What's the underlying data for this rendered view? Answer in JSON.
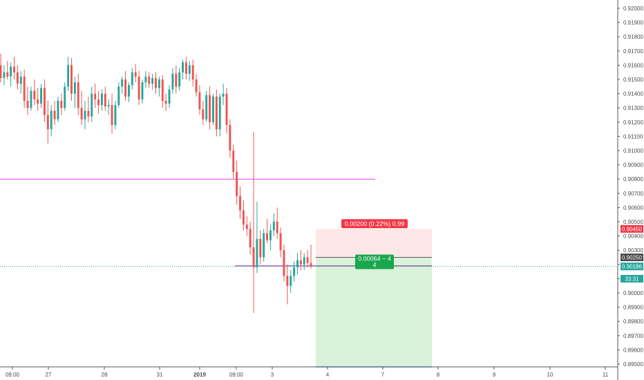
{
  "chart_data": {
    "type": "candlestick",
    "title": "",
    "xlabel": "",
    "ylabel": "",
    "ylim": [
      0.8946,
      0.9208
    ],
    "y_ticks": [
      "0.92000",
      "0.91900",
      "0.91800",
      "0.91700",
      "0.91600",
      "0.91500",
      "0.91400",
      "0.91300",
      "0.91200",
      "0.91100",
      "0.91000",
      "0.90900",
      "0.90800",
      "0.90700",
      "0.90600",
      "0.90500",
      "0.90400",
      "0.90300",
      "0.90200",
      "0.90100",
      "0.90000",
      "0.89900",
      "0.89800",
      "0.89700",
      "0.89600",
      "0.89500"
    ],
    "y_tick_values": [
      0.92,
      0.919,
      0.918,
      0.917,
      0.916,
      0.915,
      0.914,
      0.913,
      0.912,
      0.911,
      0.91,
      0.909,
      0.908,
      0.907,
      0.906,
      0.905,
      0.904,
      0.903,
      0.902,
      0.901,
      0.9,
      0.899,
      0.898,
      0.897,
      0.896,
      0.895
    ],
    "x_ticks": [
      {
        "label": "09:00",
        "bold": false
      },
      {
        "label": "27",
        "bold": false
      },
      {
        "label": "28",
        "bold": false
      },
      {
        "label": "31",
        "bold": false
      },
      {
        "label": "2019",
        "bold": true
      },
      {
        "label": "09:00",
        "bold": false
      },
      {
        "label": "3",
        "bold": false
      },
      {
        "label": "4",
        "bold": false
      },
      {
        "label": "7",
        "bold": false
      },
      {
        "label": "8",
        "bold": false
      },
      {
        "label": "9",
        "bold": false
      },
      {
        "label": "10",
        "bold": false
      },
      {
        "label": "11",
        "bold": false
      }
    ],
    "candles": [
      {
        "o": 0.916,
        "h": 0.9168,
        "l": 0.9148,
        "c": 0.9151
      },
      {
        "o": 0.9151,
        "h": 0.916,
        "l": 0.9146,
        "c": 0.9155
      },
      {
        "o": 0.9155,
        "h": 0.9163,
        "l": 0.915,
        "c": 0.9152
      },
      {
        "o": 0.9152,
        "h": 0.9162,
        "l": 0.9145,
        "c": 0.9159
      },
      {
        "o": 0.9159,
        "h": 0.9166,
        "l": 0.915,
        "c": 0.9155
      },
      {
        "o": 0.9155,
        "h": 0.916,
        "l": 0.9143,
        "c": 0.9147
      },
      {
        "o": 0.9147,
        "h": 0.9156,
        "l": 0.914,
        "c": 0.9152
      },
      {
        "o": 0.9152,
        "h": 0.9157,
        "l": 0.913,
        "c": 0.9135
      },
      {
        "o": 0.9135,
        "h": 0.9145,
        "l": 0.9125,
        "c": 0.913
      },
      {
        "o": 0.913,
        "h": 0.9145,
        "l": 0.9128,
        "c": 0.9142
      },
      {
        "o": 0.9142,
        "h": 0.915,
        "l": 0.9132,
        "c": 0.9136
      },
      {
        "o": 0.9136,
        "h": 0.9144,
        "l": 0.9128,
        "c": 0.9133
      },
      {
        "o": 0.9133,
        "h": 0.9147,
        "l": 0.913,
        "c": 0.9144
      },
      {
        "o": 0.9144,
        "h": 0.915,
        "l": 0.912,
        "c": 0.9125
      },
      {
        "o": 0.9125,
        "h": 0.9135,
        "l": 0.9105,
        "c": 0.9115
      },
      {
        "o": 0.9115,
        "h": 0.9132,
        "l": 0.911,
        "c": 0.9128
      },
      {
        "o": 0.9128,
        "h": 0.9135,
        "l": 0.9118,
        "c": 0.9122
      },
      {
        "o": 0.9122,
        "h": 0.9138,
        "l": 0.912,
        "c": 0.9135
      },
      {
        "o": 0.9135,
        "h": 0.914,
        "l": 0.9125,
        "c": 0.913
      },
      {
        "o": 0.913,
        "h": 0.9148,
        "l": 0.9128,
        "c": 0.9145
      },
      {
        "o": 0.9145,
        "h": 0.9166,
        "l": 0.9142,
        "c": 0.916
      },
      {
        "o": 0.916,
        "h": 0.9165,
        "l": 0.9135,
        "c": 0.914
      },
      {
        "o": 0.914,
        "h": 0.9152,
        "l": 0.913,
        "c": 0.9148
      },
      {
        "o": 0.9148,
        "h": 0.9154,
        "l": 0.9125,
        "c": 0.913
      },
      {
        "o": 0.913,
        "h": 0.9142,
        "l": 0.9118,
        "c": 0.9122
      },
      {
        "o": 0.9122,
        "h": 0.9135,
        "l": 0.9115,
        "c": 0.9128
      },
      {
        "o": 0.9128,
        "h": 0.9138,
        "l": 0.912,
        "c": 0.9124
      },
      {
        "o": 0.9124,
        "h": 0.9145,
        "l": 0.912,
        "c": 0.914
      },
      {
        "o": 0.914,
        "h": 0.9147,
        "l": 0.913,
        "c": 0.9136
      },
      {
        "o": 0.9136,
        "h": 0.9142,
        "l": 0.9126,
        "c": 0.9132
      },
      {
        "o": 0.9132,
        "h": 0.9143,
        "l": 0.9128,
        "c": 0.914
      },
      {
        "o": 0.914,
        "h": 0.9145,
        "l": 0.9128,
        "c": 0.9131
      },
      {
        "o": 0.9131,
        "h": 0.9136,
        "l": 0.9125,
        "c": 0.9132
      },
      {
        "o": 0.9132,
        "h": 0.914,
        "l": 0.9112,
        "c": 0.9118
      },
      {
        "o": 0.9118,
        "h": 0.9135,
        "l": 0.9115,
        "c": 0.9132
      },
      {
        "o": 0.9132,
        "h": 0.9148,
        "l": 0.913,
        "c": 0.9145
      },
      {
        "o": 0.9145,
        "h": 0.9152,
        "l": 0.914,
        "c": 0.915
      },
      {
        "o": 0.915,
        "h": 0.9156,
        "l": 0.9135,
        "c": 0.9138
      },
      {
        "o": 0.9138,
        "h": 0.9148,
        "l": 0.9134,
        "c": 0.9146
      },
      {
        "o": 0.9146,
        "h": 0.9158,
        "l": 0.9143,
        "c": 0.9155
      },
      {
        "o": 0.9155,
        "h": 0.9161,
        "l": 0.9148,
        "c": 0.9152
      },
      {
        "o": 0.9152,
        "h": 0.9156,
        "l": 0.9132,
        "c": 0.9136
      },
      {
        "o": 0.9136,
        "h": 0.915,
        "l": 0.9133,
        "c": 0.9148
      },
      {
        "o": 0.9148,
        "h": 0.9156,
        "l": 0.9144,
        "c": 0.9152
      },
      {
        "o": 0.9152,
        "h": 0.9155,
        "l": 0.9144,
        "c": 0.9147
      },
      {
        "o": 0.9147,
        "h": 0.9154,
        "l": 0.9143,
        "c": 0.9151
      },
      {
        "o": 0.9151,
        "h": 0.9155,
        "l": 0.914,
        "c": 0.9144
      },
      {
        "o": 0.9144,
        "h": 0.9152,
        "l": 0.9138,
        "c": 0.915
      },
      {
        "o": 0.915,
        "h": 0.9153,
        "l": 0.913,
        "c": 0.9135
      },
      {
        "o": 0.9135,
        "h": 0.914,
        "l": 0.9128,
        "c": 0.9133
      },
      {
        "o": 0.9133,
        "h": 0.9146,
        "l": 0.913,
        "c": 0.9143
      },
      {
        "o": 0.9143,
        "h": 0.9158,
        "l": 0.914,
        "c": 0.9154
      },
      {
        "o": 0.9154,
        "h": 0.916,
        "l": 0.914,
        "c": 0.9145
      },
      {
        "o": 0.9145,
        "h": 0.9158,
        "l": 0.9142,
        "c": 0.9155
      },
      {
        "o": 0.9155,
        "h": 0.9164,
        "l": 0.915,
        "c": 0.9162
      },
      {
        "o": 0.9162,
        "h": 0.9166,
        "l": 0.915,
        "c": 0.9154
      },
      {
        "o": 0.9154,
        "h": 0.9163,
        "l": 0.9149,
        "c": 0.916
      },
      {
        "o": 0.916,
        "h": 0.9164,
        "l": 0.9145,
        "c": 0.915
      },
      {
        "o": 0.915,
        "h": 0.9154,
        "l": 0.9138,
        "c": 0.9141
      },
      {
        "o": 0.9141,
        "h": 0.9146,
        "l": 0.9125,
        "c": 0.9129
      },
      {
        "o": 0.9129,
        "h": 0.9135,
        "l": 0.9118,
        "c": 0.9122
      },
      {
        "o": 0.9122,
        "h": 0.9142,
        "l": 0.912,
        "c": 0.9139
      },
      {
        "o": 0.9139,
        "h": 0.9145,
        "l": 0.9115,
        "c": 0.912
      },
      {
        "o": 0.912,
        "h": 0.914,
        "l": 0.9118,
        "c": 0.9138
      },
      {
        "o": 0.9138,
        "h": 0.9143,
        "l": 0.911,
        "c": 0.9115
      },
      {
        "o": 0.9115,
        "h": 0.914,
        "l": 0.911,
        "c": 0.9138
      },
      {
        "o": 0.9138,
        "h": 0.9147,
        "l": 0.9132,
        "c": 0.914
      },
      {
        "o": 0.914,
        "h": 0.9144,
        "l": 0.9112,
        "c": 0.9118
      },
      {
        "o": 0.9118,
        "h": 0.9122,
        "l": 0.9095,
        "c": 0.91
      },
      {
        "o": 0.91,
        "h": 0.9104,
        "l": 0.908,
        "c": 0.9085
      },
      {
        "o": 0.9085,
        "h": 0.9093,
        "l": 0.9062,
        "c": 0.9068
      },
      {
        "o": 0.9068,
        "h": 0.9075,
        "l": 0.9052,
        "c": 0.9058
      },
      {
        "o": 0.9058,
        "h": 0.9065,
        "l": 0.9044,
        "c": 0.9048
      },
      {
        "o": 0.9048,
        "h": 0.9054,
        "l": 0.904,
        "c": 0.9045
      },
      {
        "o": 0.9045,
        "h": 0.905,
        "l": 0.9027,
        "c": 0.9032
      },
      {
        "o": 0.9032,
        "h": 0.9113,
        "l": 0.8986,
        "c": 0.9018
      },
      {
        "o": 0.9018,
        "h": 0.9064,
        "l": 0.9014,
        "c": 0.9038
      },
      {
        "o": 0.9038,
        "h": 0.9044,
        "l": 0.902,
        "c": 0.9025
      },
      {
        "o": 0.9025,
        "h": 0.9045,
        "l": 0.9022,
        "c": 0.9042
      },
      {
        "o": 0.9042,
        "h": 0.9052,
        "l": 0.9035,
        "c": 0.9037
      },
      {
        "o": 0.9037,
        "h": 0.9048,
        "l": 0.903,
        "c": 0.9044
      },
      {
        "o": 0.9044,
        "h": 0.9056,
        "l": 0.904,
        "c": 0.905
      },
      {
        "o": 0.905,
        "h": 0.906,
        "l": 0.9038,
        "c": 0.9042
      },
      {
        "o": 0.9042,
        "h": 0.9046,
        "l": 0.9025,
        "c": 0.903
      },
      {
        "o": 0.903,
        "h": 0.9034,
        "l": 0.9008,
        "c": 0.9012
      },
      {
        "o": 0.9012,
        "h": 0.902,
        "l": 0.8992,
        "c": 0.9005
      },
      {
        "o": 0.9005,
        "h": 0.9016,
        "l": 0.9,
        "c": 0.9012
      },
      {
        "o": 0.9012,
        "h": 0.9022,
        "l": 0.9008,
        "c": 0.9018
      },
      {
        "o": 0.9018,
        "h": 0.9028,
        "l": 0.9013,
        "c": 0.9023
      },
      {
        "o": 0.9023,
        "h": 0.903,
        "l": 0.9016,
        "c": 0.902
      },
      {
        "o": 0.902,
        "h": 0.9028,
        "l": 0.9016,
        "c": 0.9025
      },
      {
        "o": 0.9025,
        "h": 0.903,
        "l": 0.9018,
        "c": 0.9021
      },
      {
        "o": 0.9021,
        "h": 0.9034,
        "l": 0.9017,
        "c": 0.9019
      }
    ],
    "horizontal_lines": [
      {
        "name": "magenta-level-line",
        "value": 0.908,
        "color": "#e040fb",
        "extends_to_axis": false
      },
      {
        "name": "purple-level-line",
        "value": 0.9019,
        "color": "#7b1fa2",
        "extends_to_axis": false
      },
      {
        "name": "current-price-line",
        "value": 0.90186,
        "color": "#26a69a",
        "dotted": true,
        "extends_to_axis": true
      }
    ],
    "position": {
      "type": "long",
      "entry": 0.9025,
      "target": 0.9045,
      "stop_below": 0.8946,
      "target_label": "0.00200 (0.22%) 0.99",
      "current_label_line1": "0.00064 ~ 4",
      "current_label_line2": "4"
    },
    "price_tags": [
      {
        "label": "0.90450",
        "value": 0.9045,
        "bg": "#f23645"
      },
      {
        "label": "0.90250",
        "value": 0.9025,
        "bg": "#4a4a4a"
      },
      {
        "label": "0.90186",
        "value": 0.90186,
        "bg": "#26a69a"
      },
      {
        "label": "33:31",
        "value": 0.901,
        "bg": "#26a69a"
      }
    ],
    "bear_color": "#ef5350",
    "bull_color": "#26a69a"
  }
}
